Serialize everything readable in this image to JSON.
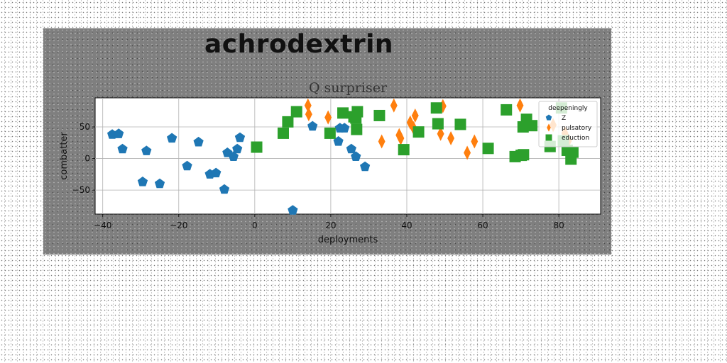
{
  "chart_data": {
    "type": "scatter",
    "suptitle": "achrodextrin",
    "title": "Q surpriser",
    "xlabel": "deployments",
    "ylabel": "combatter",
    "xlim": [
      -42,
      91
    ],
    "ylim": [
      -88,
      96
    ],
    "xticks": [
      -40,
      -20,
      0,
      20,
      40,
      60,
      80
    ],
    "yticks": [
      -50,
      0,
      50
    ],
    "grid": true,
    "legend": {
      "title": "deepeningly",
      "placement": "upper right"
    },
    "series": [
      {
        "name": "Z",
        "color": "#1f77b4",
        "marker": "pentagon",
        "points": [
          [
            -37.5,
            38
          ],
          [
            -35.8,
            39
          ],
          [
            -34.8,
            15
          ],
          [
            -29.5,
            -37
          ],
          [
            -28.5,
            12
          ],
          [
            -25,
            -40
          ],
          [
            -21.8,
            32
          ],
          [
            -17.8,
            -12
          ],
          [
            -14.8,
            26
          ],
          [
            -11.8,
            -25
          ],
          [
            -10.2,
            -23
          ],
          [
            -8,
            -49
          ],
          [
            -7.2,
            9
          ],
          [
            -5.6,
            3
          ],
          [
            -4.6,
            15
          ],
          [
            -3.9,
            33
          ],
          [
            10,
            -82
          ],
          [
            15.2,
            51
          ],
          [
            22,
            27
          ],
          [
            22.4,
            48
          ],
          [
            23.6,
            48
          ],
          [
            25.4,
            15
          ],
          [
            26.6,
            3
          ],
          [
            29,
            -13
          ]
        ]
      },
      {
        "name": "pulsatory",
        "color": "#ff7f0e",
        "marker": "thin_diamond",
        "points": [
          [
            14,
            84
          ],
          [
            14.2,
            70
          ],
          [
            19.3,
            65
          ],
          [
            33.4,
            27
          ],
          [
            36.6,
            84
          ],
          [
            38,
            37
          ],
          [
            38.4,
            32
          ],
          [
            40.9,
            57
          ],
          [
            41.8,
            48
          ],
          [
            42.2,
            68
          ],
          [
            48.9,
            39
          ],
          [
            49.5,
            83
          ],
          [
            51.6,
            32
          ],
          [
            55.9,
            9
          ],
          [
            57.8,
            27
          ],
          [
            69.8,
            84
          ],
          [
            78.5,
            53
          ],
          [
            81.6,
            40
          ],
          [
            82.5,
            28
          ]
        ]
      },
      {
        "name": "eduction",
        "color": "#2ca02c",
        "marker": "square",
        "points": [
          [
            0.5,
            18
          ],
          [
            7.5,
            40
          ],
          [
            8.7,
            58
          ],
          [
            11,
            74
          ],
          [
            19.8,
            40
          ],
          [
            23.2,
            72
          ],
          [
            26.1,
            66
          ],
          [
            26.6,
            64
          ],
          [
            27,
            74
          ],
          [
            26.8,
            46
          ],
          [
            32.8,
            68
          ],
          [
            39.2,
            14
          ],
          [
            43.1,
            42
          ],
          [
            47.8,
            80
          ],
          [
            48.2,
            55
          ],
          [
            54.1,
            54
          ],
          [
            61.4,
            16
          ],
          [
            66.2,
            77
          ],
          [
            68.5,
            3
          ],
          [
            70.1,
            5
          ],
          [
            70.7,
            6
          ],
          [
            70.6,
            50
          ],
          [
            71.5,
            62
          ],
          [
            72.9,
            52
          ],
          [
            77.7,
            19
          ],
          [
            80.7,
            80
          ],
          [
            81.2,
            28
          ],
          [
            82.2,
            13
          ],
          [
            83.2,
            -1
          ],
          [
            83.7,
            10
          ]
        ]
      }
    ]
  }
}
